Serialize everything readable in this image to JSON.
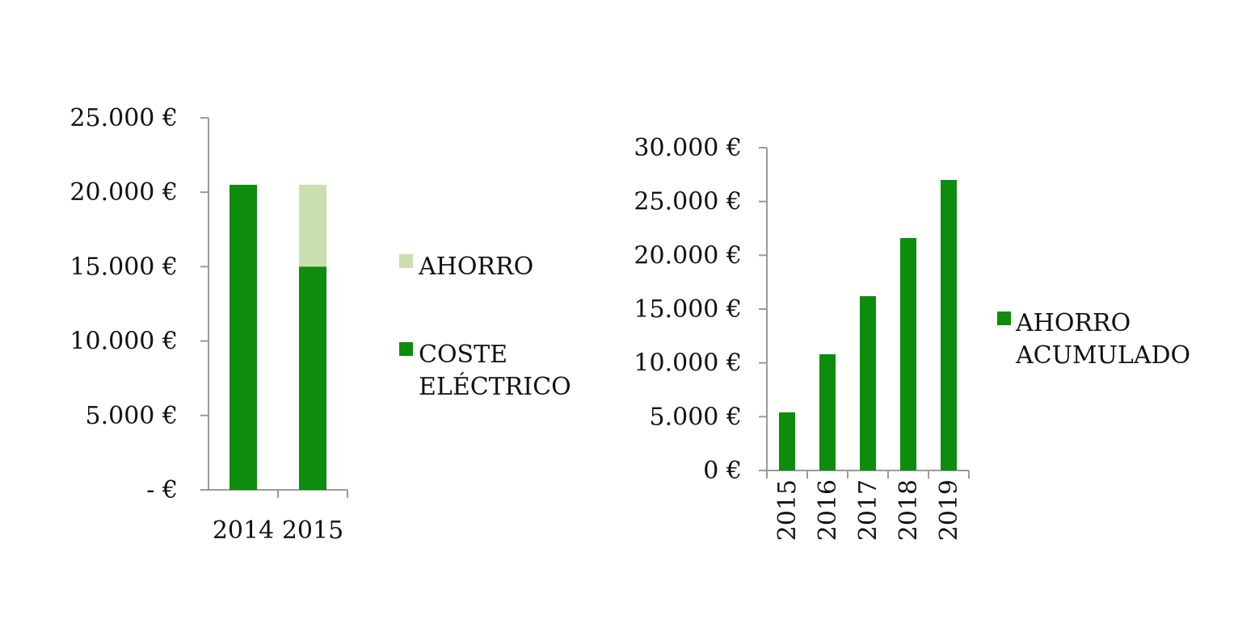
{
  "chart_data": [
    {
      "type": "bar",
      "stacked": true,
      "categories": [
        "2014",
        "2015"
      ],
      "series": [
        {
          "name": "COSTE ELÉCTRICO",
          "color": "#0e8c0e",
          "values": [
            20500,
            15000
          ]
        },
        {
          "name": "AHORRO",
          "color": "#c9dfae",
          "values": [
            0,
            5500
          ]
        }
      ],
      "y_tick_labels": [
        "- €",
        "5.000 €",
        "10.000 €",
        "15.000 €",
        "20.000 €",
        "25.000 €"
      ],
      "y_tick_values": [
        0,
        5000,
        10000,
        15000,
        20000,
        25000
      ],
      "ylim": [
        0,
        25000
      ],
      "legend": {
        "position": "right",
        "entries": [
          {
            "lines": [
              "AHORRO"
            ],
            "color": "#c9dfae"
          },
          {
            "lines": [
              "COSTE",
              "ELÉCTRICO"
            ],
            "color": "#0e8c0e"
          }
        ]
      },
      "grid": false,
      "title": "",
      "xlabel": "",
      "ylabel": ""
    },
    {
      "type": "bar",
      "categories": [
        "2015",
        "2016",
        "2017",
        "2018",
        "2019"
      ],
      "x_tick_orientation": "vertical",
      "series": [
        {
          "name": "AHORRO ACUMULADO",
          "color": "#0e8c0e",
          "values": [
            5400,
            10800,
            16200,
            21600,
            27000
          ]
        }
      ],
      "y_tick_labels": [
        "0 €",
        "5.000 €",
        "10.000 €",
        "15.000 €",
        "20.000 €",
        "25.000 €",
        "30.000 €"
      ],
      "y_tick_values": [
        0,
        5000,
        10000,
        15000,
        20000,
        25000,
        30000
      ],
      "ylim": [
        0,
        30000
      ],
      "legend": {
        "position": "right",
        "entries": [
          {
            "lines": [
              "AHORRO",
              "ACUMULADO"
            ],
            "color": "#0e8c0e"
          }
        ]
      },
      "grid": false,
      "title": "",
      "xlabel": "",
      "ylabel": ""
    }
  ]
}
